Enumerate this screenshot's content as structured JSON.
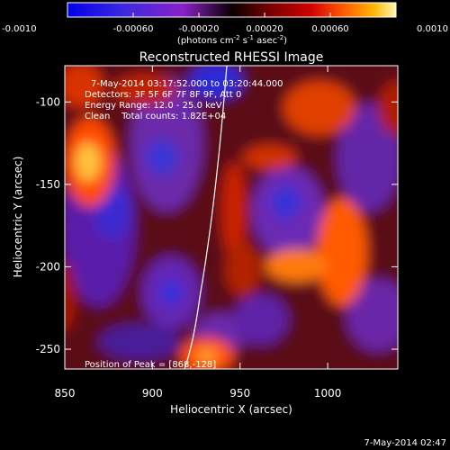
{
  "colorbar": {
    "tick_labels": [
      "-0.0010",
      "-0.00060",
      "-0.00020",
      "0.00020",
      "0.00060",
      "0.0010"
    ],
    "values": [
      -0.001,
      -0.0006,
      -0.0002,
      0.0002,
      0.0006,
      0.001
    ],
    "range": [
      -0.001,
      0.001
    ],
    "units_main": "(photons cm",
    "units_exp1": "-2",
    "units_mid1": " s",
    "units_exp2": "-1",
    "units_mid2": " asec",
    "units_exp3": "-2",
    "units_end": ")"
  },
  "title": "Reconstructed RHESSI Image",
  "annotations": {
    "time_range": "7-May-2014 03:17:52.000 to 03:20:44.000",
    "detectors": "Detectors: 3F 5F 6F 7F 8F 9F, Att 0",
    "energy": "Energy Range: 12.0 - 25.0 keV",
    "method": "Clean    Total counts: 1.82E+04",
    "peak": "Position of Peak = [868,-128]"
  },
  "axes": {
    "xlabel": "Heliocentric X (arcsec)",
    "ylabel": "Heliocentric Y (arcsec)",
    "xlim": [
      850,
      1040
    ],
    "ylim": [
      -262,
      -78
    ],
    "xticks": [
      850,
      900,
      950,
      1000
    ],
    "yticks": [
      -100,
      -150,
      -200,
      -250
    ]
  },
  "footer_timestamp": "7-May-2014 02:47"
}
